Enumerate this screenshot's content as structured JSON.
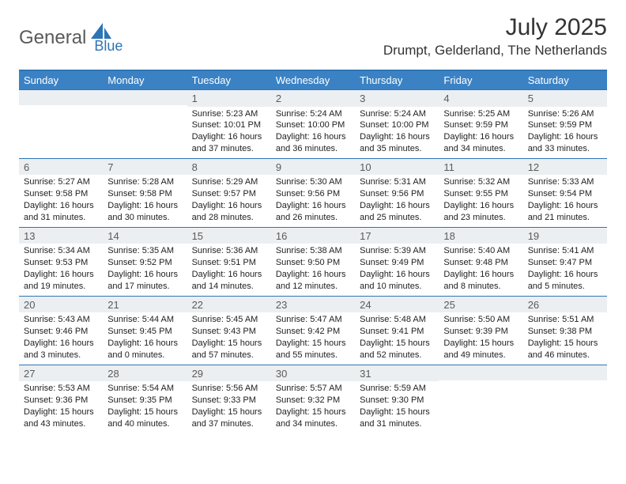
{
  "logo": {
    "text1": "General",
    "text2": "Blue",
    "shape_color": "#2d74b5",
    "text1_color": "#5a5a5a",
    "text2_color": "#2d74b5"
  },
  "title": "July 2025",
  "location": "Drumpt, Gelderland, The Netherlands",
  "colors": {
    "header_bg": "#3b82c4",
    "header_border": "#2d74b5",
    "daynum_bg": "#eceff1",
    "text": "#222222",
    "title_color": "#333333"
  },
  "weekdays": [
    "Sunday",
    "Monday",
    "Tuesday",
    "Wednesday",
    "Thursday",
    "Friday",
    "Saturday"
  ],
  "weeks": [
    [
      null,
      null,
      {
        "n": "1",
        "sr": "5:23 AM",
        "ss": "10:01 PM",
        "dl": "16 hours and 37 minutes."
      },
      {
        "n": "2",
        "sr": "5:24 AM",
        "ss": "10:00 PM",
        "dl": "16 hours and 36 minutes."
      },
      {
        "n": "3",
        "sr": "5:24 AM",
        "ss": "10:00 PM",
        "dl": "16 hours and 35 minutes."
      },
      {
        "n": "4",
        "sr": "5:25 AM",
        "ss": "9:59 PM",
        "dl": "16 hours and 34 minutes."
      },
      {
        "n": "5",
        "sr": "5:26 AM",
        "ss": "9:59 PM",
        "dl": "16 hours and 33 minutes."
      }
    ],
    [
      {
        "n": "6",
        "sr": "5:27 AM",
        "ss": "9:58 PM",
        "dl": "16 hours and 31 minutes."
      },
      {
        "n": "7",
        "sr": "5:28 AM",
        "ss": "9:58 PM",
        "dl": "16 hours and 30 minutes."
      },
      {
        "n": "8",
        "sr": "5:29 AM",
        "ss": "9:57 PM",
        "dl": "16 hours and 28 minutes."
      },
      {
        "n": "9",
        "sr": "5:30 AM",
        "ss": "9:56 PM",
        "dl": "16 hours and 26 minutes."
      },
      {
        "n": "10",
        "sr": "5:31 AM",
        "ss": "9:56 PM",
        "dl": "16 hours and 25 minutes."
      },
      {
        "n": "11",
        "sr": "5:32 AM",
        "ss": "9:55 PM",
        "dl": "16 hours and 23 minutes."
      },
      {
        "n": "12",
        "sr": "5:33 AM",
        "ss": "9:54 PM",
        "dl": "16 hours and 21 minutes."
      }
    ],
    [
      {
        "n": "13",
        "sr": "5:34 AM",
        "ss": "9:53 PM",
        "dl": "16 hours and 19 minutes."
      },
      {
        "n": "14",
        "sr": "5:35 AM",
        "ss": "9:52 PM",
        "dl": "16 hours and 17 minutes."
      },
      {
        "n": "15",
        "sr": "5:36 AM",
        "ss": "9:51 PM",
        "dl": "16 hours and 14 minutes."
      },
      {
        "n": "16",
        "sr": "5:38 AM",
        "ss": "9:50 PM",
        "dl": "16 hours and 12 minutes."
      },
      {
        "n": "17",
        "sr": "5:39 AM",
        "ss": "9:49 PM",
        "dl": "16 hours and 10 minutes."
      },
      {
        "n": "18",
        "sr": "5:40 AM",
        "ss": "9:48 PM",
        "dl": "16 hours and 8 minutes."
      },
      {
        "n": "19",
        "sr": "5:41 AM",
        "ss": "9:47 PM",
        "dl": "16 hours and 5 minutes."
      }
    ],
    [
      {
        "n": "20",
        "sr": "5:43 AM",
        "ss": "9:46 PM",
        "dl": "16 hours and 3 minutes."
      },
      {
        "n": "21",
        "sr": "5:44 AM",
        "ss": "9:45 PM",
        "dl": "16 hours and 0 minutes."
      },
      {
        "n": "22",
        "sr": "5:45 AM",
        "ss": "9:43 PM",
        "dl": "15 hours and 57 minutes."
      },
      {
        "n": "23",
        "sr": "5:47 AM",
        "ss": "9:42 PM",
        "dl": "15 hours and 55 minutes."
      },
      {
        "n": "24",
        "sr": "5:48 AM",
        "ss": "9:41 PM",
        "dl": "15 hours and 52 minutes."
      },
      {
        "n": "25",
        "sr": "5:50 AM",
        "ss": "9:39 PM",
        "dl": "15 hours and 49 minutes."
      },
      {
        "n": "26",
        "sr": "5:51 AM",
        "ss": "9:38 PM",
        "dl": "15 hours and 46 minutes."
      }
    ],
    [
      {
        "n": "27",
        "sr": "5:53 AM",
        "ss": "9:36 PM",
        "dl": "15 hours and 43 minutes."
      },
      {
        "n": "28",
        "sr": "5:54 AM",
        "ss": "9:35 PM",
        "dl": "15 hours and 40 minutes."
      },
      {
        "n": "29",
        "sr": "5:56 AM",
        "ss": "9:33 PM",
        "dl": "15 hours and 37 minutes."
      },
      {
        "n": "30",
        "sr": "5:57 AM",
        "ss": "9:32 PM",
        "dl": "15 hours and 34 minutes."
      },
      {
        "n": "31",
        "sr": "5:59 AM",
        "ss": "9:30 PM",
        "dl": "15 hours and 31 minutes."
      },
      null,
      null
    ]
  ],
  "labels": {
    "sunrise": "Sunrise:",
    "sunset": "Sunset:",
    "daylight": "Daylight:"
  }
}
